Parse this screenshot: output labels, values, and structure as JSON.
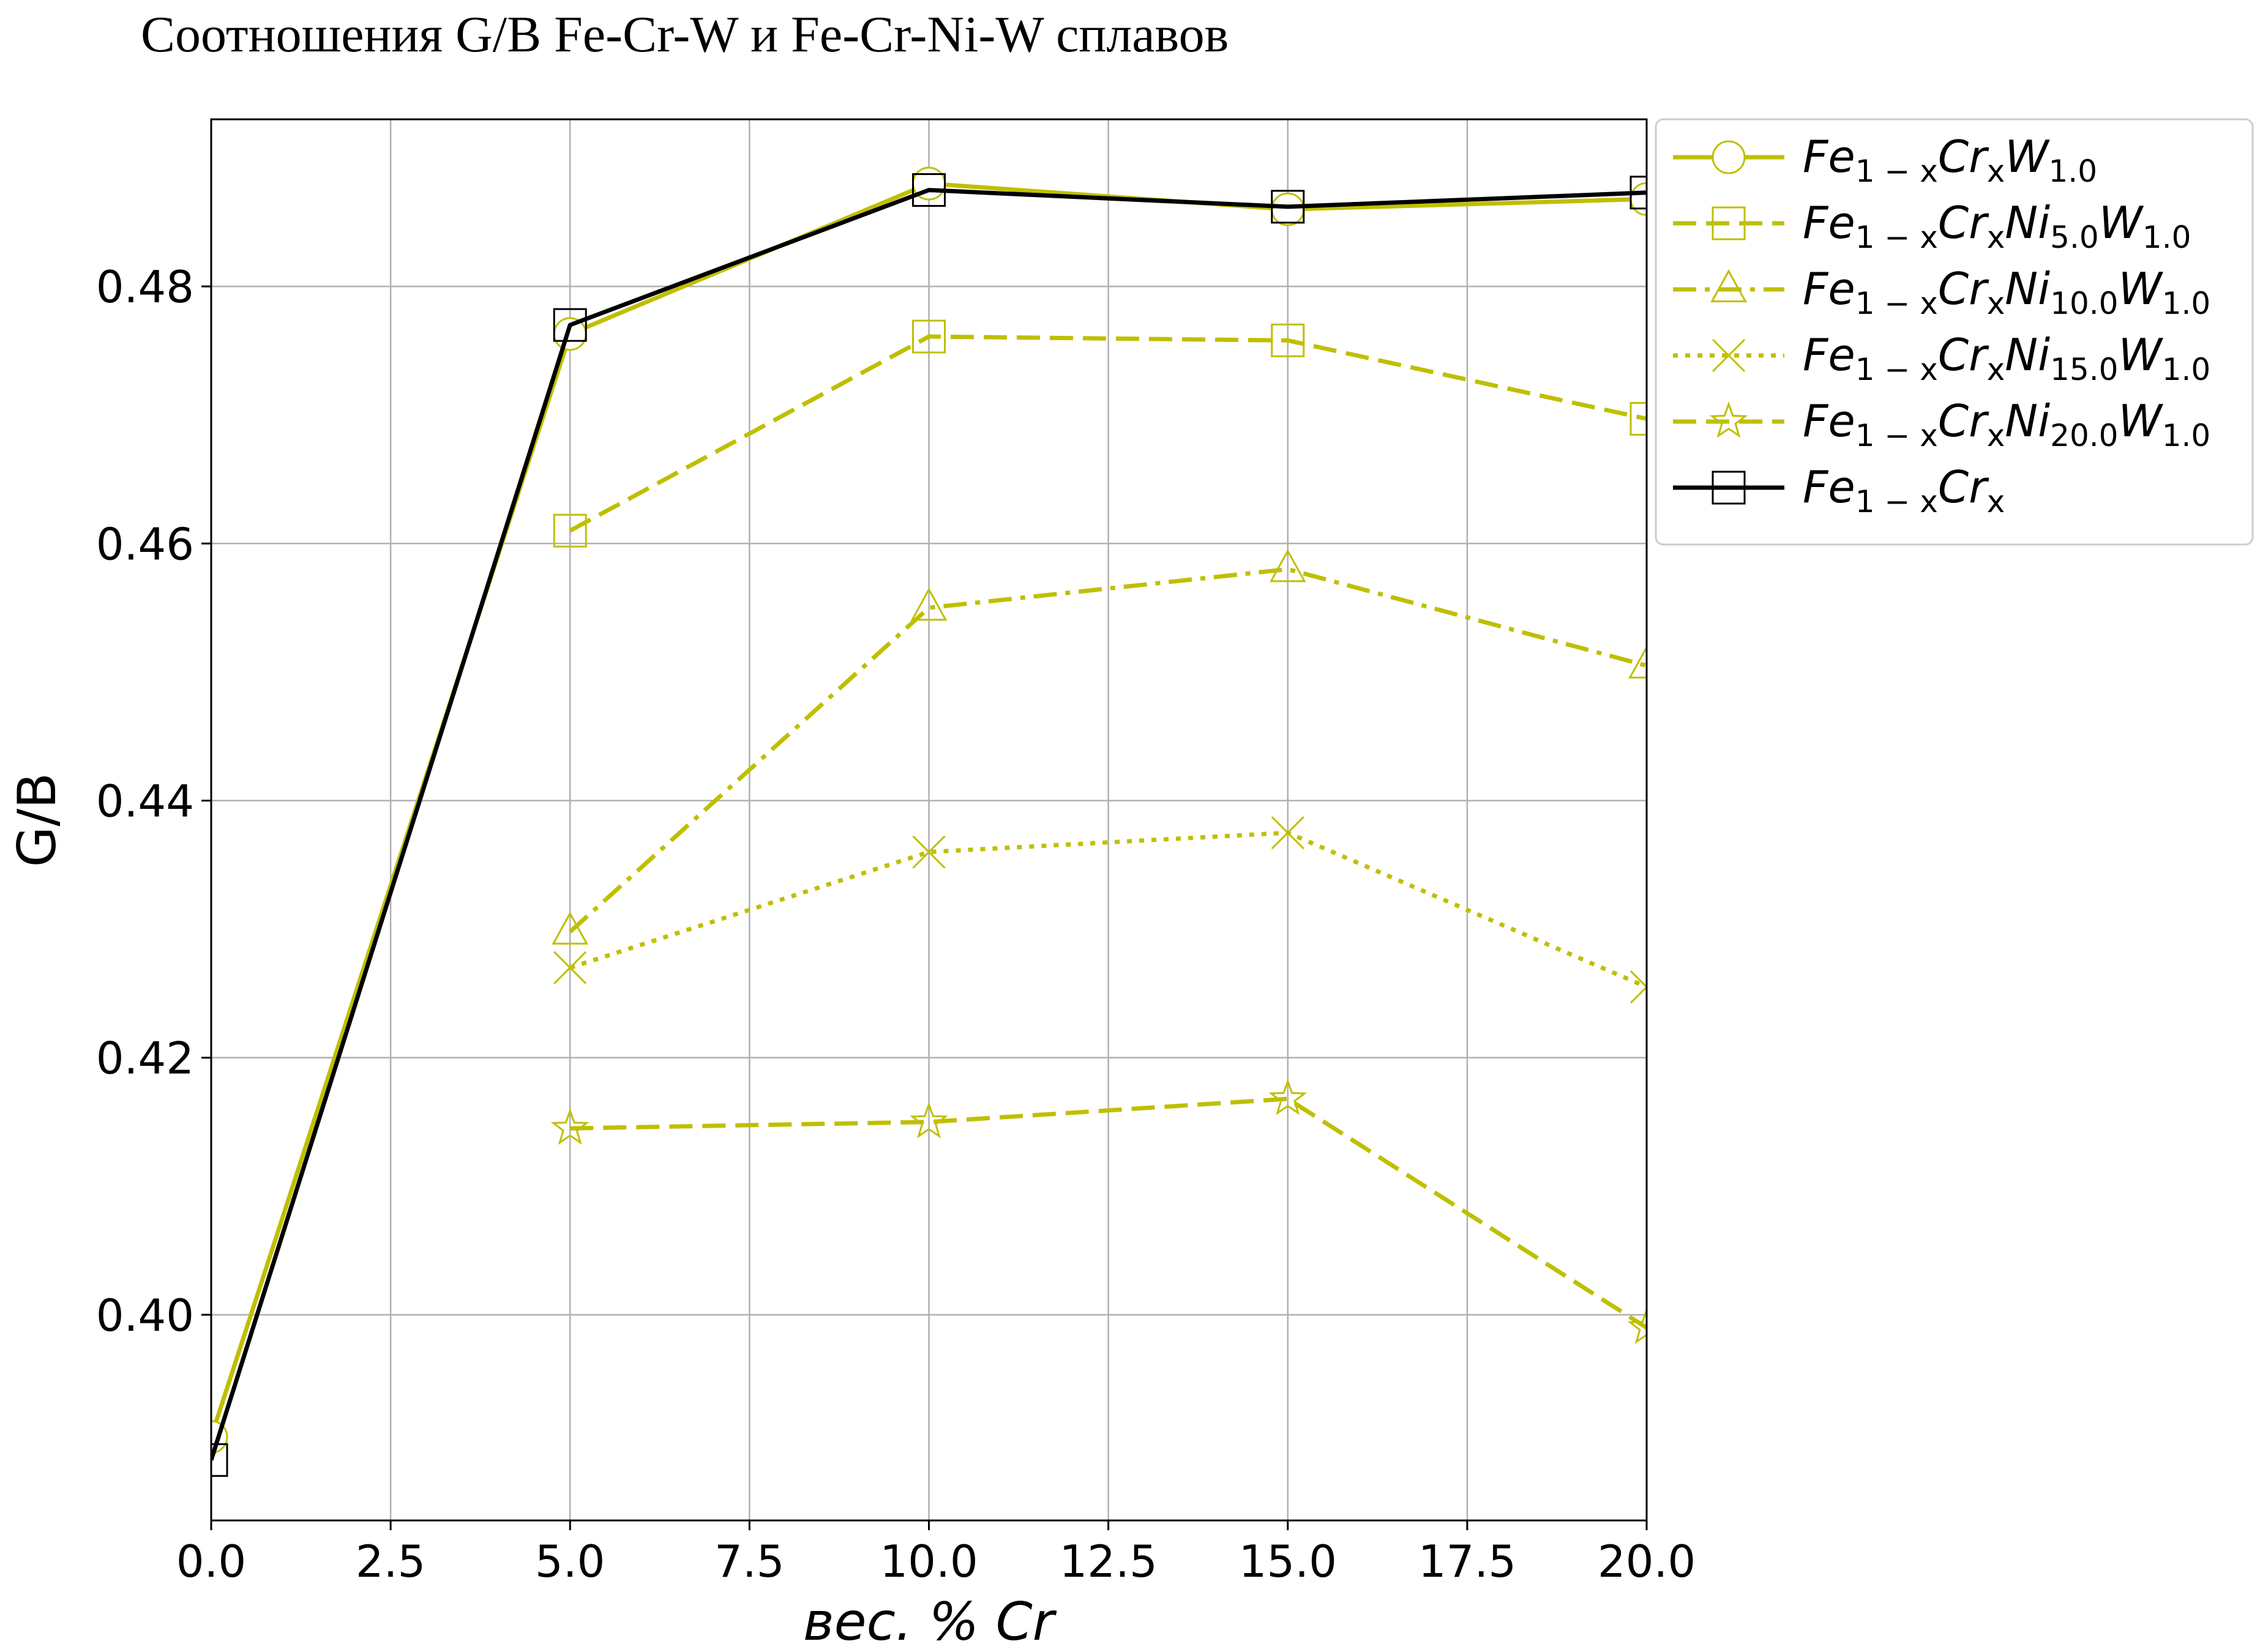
{
  "chart_data": {
    "type": "line",
    "title": "Соотношения G/B Fe-Cr-W и Fe-Cr-Ni-W сплавов",
    "xlabel": "вес. % Cr",
    "ylabel": "G/B",
    "xlim": [
      0,
      20
    ],
    "ylim": [
      0.384,
      0.493
    ],
    "xticks": [
      "0.0",
      "2.5",
      "5.0",
      "7.5",
      "10.0",
      "12.5",
      "15.0",
      "17.5",
      "20.0"
    ],
    "yticks": [
      "0.40",
      "0.42",
      "0.44",
      "0.46",
      "0.48"
    ],
    "grid": true,
    "legend_position": "outside-top-right",
    "series": [
      {
        "name": "Fe1−xCrxW1.0",
        "legend": {
          "base": "Fe",
          "s1": "1 − x",
          "mid": "Cr",
          "s2": "x",
          "extra": "W",
          "s3": "1.0"
        },
        "color": "#bfbf00",
        "marker": "circle",
        "dash": "solid",
        "x": [
          0,
          5,
          10,
          15,
          20
        ],
        "y": [
          0.3905,
          0.4763,
          0.488,
          0.486,
          0.4868
        ]
      },
      {
        "name": "Fe1−xCrxNi5.0W1.0",
        "legend": {
          "base": "Fe",
          "s1": "1 − x",
          "mid": "Cr",
          "s2": "x",
          "extra": "Ni",
          "s3": "5.0",
          "extra2": "W",
          "s4": "1.0"
        },
        "color": "#bfbf00",
        "marker": "square",
        "dash": "dashed",
        "x": [
          5,
          10,
          15,
          20
        ],
        "y": [
          0.461,
          0.4761,
          0.4758,
          0.4697
        ]
      },
      {
        "name": "Fe1−xCrxNi10.0W1.0",
        "legend": {
          "base": "Fe",
          "s1": "1 − x",
          "mid": "Cr",
          "s2": "x",
          "extra": "Ni",
          "s3": "10.0",
          "extra2": "W",
          "s4": "1.0"
        },
        "color": "#bfbf00",
        "marker": "triangle",
        "dash": "dashdot",
        "x": [
          5,
          10,
          15,
          20
        ],
        "y": [
          0.4298,
          0.455,
          0.458,
          0.4505
        ]
      },
      {
        "name": "Fe1−xCrxNi15.0W1.0",
        "legend": {
          "base": "Fe",
          "s1": "1 − x",
          "mid": "Cr",
          "s2": "x",
          "extra": "Ni",
          "s3": "15.0",
          "extra2": "W",
          "s4": "1.0"
        },
        "color": "#bfbf00",
        "marker": "x",
        "dash": "dotted",
        "x": [
          5,
          10,
          15,
          20
        ],
        "y": [
          0.427,
          0.436,
          0.4375,
          0.4255
        ]
      },
      {
        "name": "Fe1−xCrxNi20.0W1.0",
        "legend": {
          "base": "Fe",
          "s1": "1 − x",
          "mid": "Cr",
          "s2": "x",
          "extra": "Ni",
          "s3": "20.0",
          "extra2": "W",
          "s4": "1.0"
        },
        "color": "#bfbf00",
        "marker": "star",
        "dash": "dashed",
        "x": [
          5,
          10,
          15,
          20
        ],
        "y": [
          0.4145,
          0.415,
          0.4168,
          0.399
        ]
      },
      {
        "name": "Fe1−xCrx",
        "legend": {
          "base": "Fe",
          "s1": "1 − x",
          "mid": "Cr",
          "s2": "x"
        },
        "color": "#000000",
        "marker": "square",
        "dash": "solid",
        "x": [
          0,
          5,
          10,
          15,
          20
        ],
        "y": [
          0.3887,
          0.477,
          0.4875,
          0.4862,
          0.4873
        ]
      }
    ]
  }
}
